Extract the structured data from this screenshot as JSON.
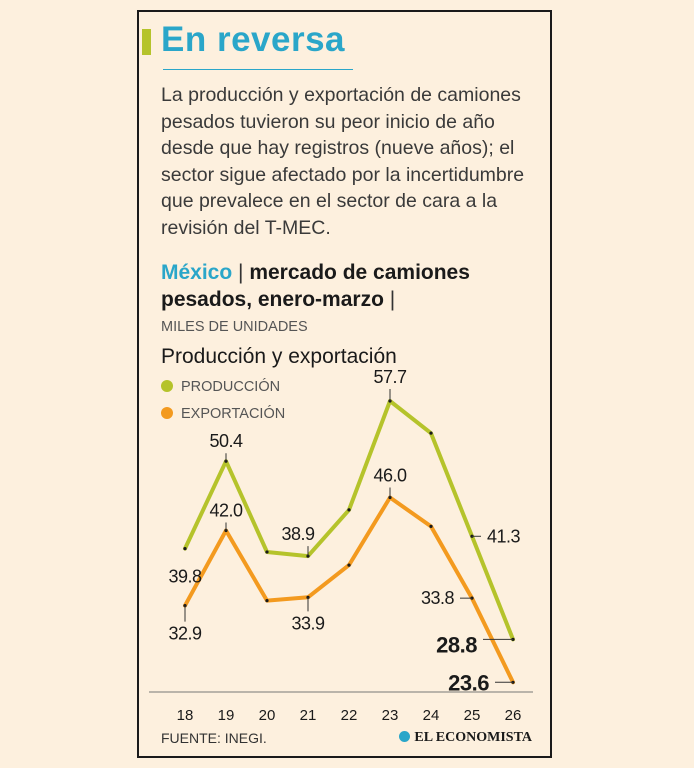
{
  "title": "En reversa",
  "subtitle": "La producción y exportación de camiones pesados tuvieron su peor inicio de año desde que hay registros (nueve años); el sector sigue afectado por la incertidumbre que prevalece en el sector de cara a la revisión del T-MEC.",
  "heading": {
    "country": "México",
    "sep1": " | ",
    "text": "mercado de camiones pesados, enero-marzo",
    "sep2": " |"
  },
  "units": "MILES DE UNIDADES",
  "section_title": "Producción y exportación",
  "source": "FUENTE: INEGI.",
  "brand": "EL ECONOMISTA",
  "colors": {
    "produccion": "#b5c32b",
    "exportacion": "#f39a1f",
    "accent": "#2aa6c9"
  },
  "chart_data": {
    "type": "line",
    "x": [
      "18",
      "19",
      "20",
      "21",
      "22",
      "23",
      "24",
      "25",
      "26"
    ],
    "series": [
      {
        "name": "PRODUCCIÓN",
        "color": "#b5c32b",
        "values": [
          39.8,
          50.4,
          39.4,
          38.9,
          44.5,
          57.7,
          53.8,
          41.3,
          28.8
        ],
        "labels": [
          "39.8",
          "50.4",
          null,
          "38.9",
          null,
          "57.7",
          null,
          "41.3",
          "28.8"
        ]
      },
      {
        "name": "EXPORTACIÓN",
        "color": "#f39a1f",
        "values": [
          32.9,
          42.0,
          33.5,
          33.9,
          37.8,
          46.0,
          42.5,
          33.8,
          23.6
        ],
        "labels": [
          "32.9",
          "42.0",
          null,
          "33.9",
          null,
          "46.0",
          null,
          "33.8",
          "23.6"
        ]
      }
    ],
    "ylim": [
      20,
      60
    ],
    "grid": false,
    "legend": "top-left",
    "title": "Producción y exportación",
    "ylabel": "MILES DE UNIDADES"
  }
}
